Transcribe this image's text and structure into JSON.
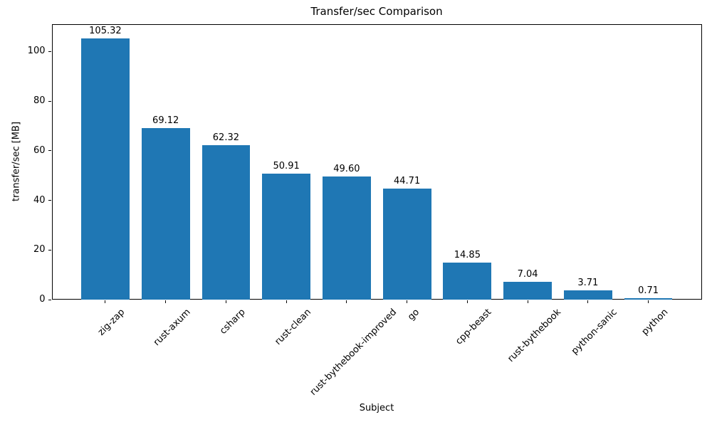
{
  "chart_data": {
    "type": "bar",
    "title": "Transfer/sec Comparison",
    "xlabel": "Subject",
    "ylabel": "transfer/sec [MB]",
    "categories": [
      "zig-zap",
      "rust-axum",
      "csharp",
      "rust-clean",
      "rust-bythebook-improved",
      "go",
      "cpp-beast",
      "rust-bythebook",
      "python-sanic",
      "python"
    ],
    "values": [
      105.32,
      69.12,
      62.32,
      50.91,
      49.6,
      44.71,
      14.85,
      7.04,
      3.71,
      0.71
    ],
    "value_labels": [
      "105.32",
      "69.12",
      "62.32",
      "50.91",
      "49.60",
      "44.71",
      "14.85",
      "7.04",
      "3.71",
      "0.71"
    ],
    "yticks": [
      0,
      20,
      40,
      60,
      80,
      100
    ],
    "ylim": [
      0,
      111
    ],
    "xlim": [
      -0.89,
      9.89
    ],
    "bar_rel_width": 0.8,
    "bar_color": "#1f77b4",
    "grid": false,
    "legend": null,
    "x_tick_rotation_deg": 45
  }
}
